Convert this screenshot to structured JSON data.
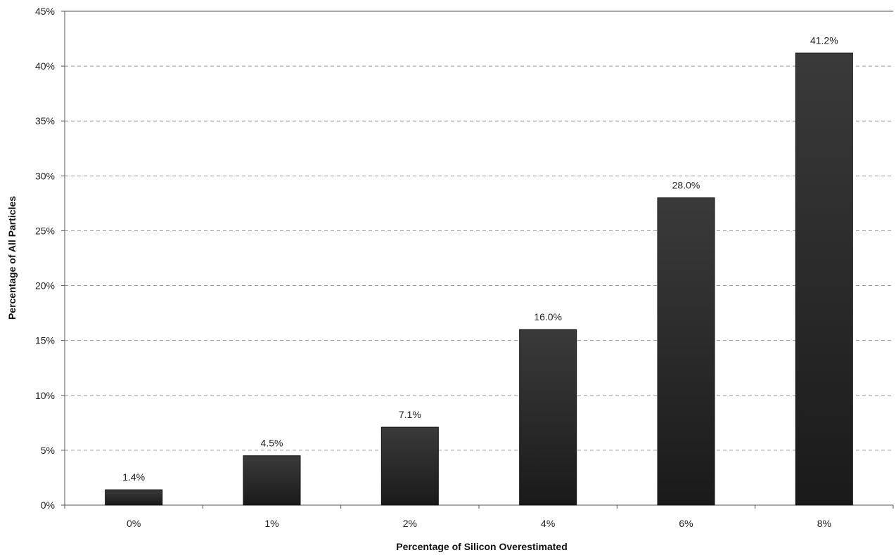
{
  "chart_data": {
    "type": "bar",
    "title": "",
    "xlabel": "Percentage of Silicon Overestimated",
    "ylabel": "Percentage of All Particles",
    "categories": [
      "0%",
      "1%",
      "2%",
      "4%",
      "6%",
      "8%"
    ],
    "values": [
      1.4,
      4.5,
      7.1,
      16.0,
      28.0,
      41.2
    ],
    "data_labels": [
      "1.4%",
      "4.5%",
      "7.1%",
      "16.0%",
      "28.0%",
      "41.2%"
    ],
    "ylim": [
      0,
      45
    ],
    "yticks": [
      0,
      5,
      10,
      15,
      20,
      25,
      30,
      35,
      40,
      45
    ],
    "ytick_labels": [
      "0%",
      "5%",
      "10%",
      "15%",
      "20%",
      "25%",
      "30%",
      "35%",
      "40%",
      "45%"
    ],
    "grid": "horizontal dashed",
    "legend": "none",
    "colors": {
      "bar": "#1e1e1e",
      "bar_top": "#3a3a3a",
      "grid": "#999999",
      "axis": "#555555"
    }
  }
}
